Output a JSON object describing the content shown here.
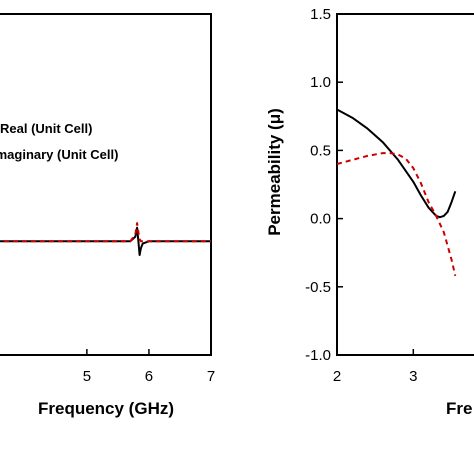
{
  "chart_data": [
    {
      "type": "line",
      "panel": "left",
      "xlabel": "Frequency (GHz)",
      "ylabel": "",
      "xlim": [
        3.52,
        7
      ],
      "ylim": [
        -0.5,
        1.0
      ],
      "x_ticks": [
        5,
        6,
        7
      ],
      "x_tick_labels": [
        "5",
        "6",
        "7"
      ],
      "y_ticks": [],
      "grid": false,
      "legend_position": "middle-left",
      "series": [
        {
          "name": "Real (Unit Cell)",
          "color": "#000000",
          "dash": "solid",
          "x": [
            3.52,
            5.7,
            5.78,
            5.81,
            5.83,
            5.85,
            5.87,
            5.9,
            6.0,
            7.0
          ],
          "y": [
            0.0,
            0.0,
            0.02,
            0.06,
            0.0,
            -0.06,
            -0.03,
            -0.01,
            0.0,
            0.0
          ]
        },
        {
          "name": "Imaginary (Unit Cell)",
          "color": "#cc0000",
          "dash": "dashed",
          "x": [
            3.52,
            5.7,
            5.78,
            5.81,
            5.83,
            5.85,
            5.87,
            5.9,
            6.0,
            7.0
          ],
          "y": [
            0.0,
            0.0,
            0.03,
            0.08,
            0.04,
            0.01,
            0.0,
            0.0,
            0.0,
            0.0
          ]
        }
      ]
    },
    {
      "type": "line",
      "panel": "right",
      "xlabel": "Fre",
      "ylabel": "Permeability (μ)",
      "xlim": [
        2,
        3.9
      ],
      "ylim": [
        -1.0,
        1.5
      ],
      "x_ticks": [
        2,
        3
      ],
      "x_tick_labels": [
        "2",
        "3"
      ],
      "y_ticks": [
        -1.0,
        -0.5,
        0.0,
        0.5,
        1.0,
        1.5
      ],
      "y_tick_labels": [
        "-1.0",
        "-0.5",
        "0.0",
        "0.5",
        "1.0",
        "1.5"
      ],
      "grid": false,
      "series": [
        {
          "color": "#000000",
          "dash": "solid",
          "x": [
            2.0,
            2.2,
            2.4,
            2.6,
            2.8,
            3.0,
            3.1,
            3.2,
            3.3,
            3.35,
            3.4,
            3.45,
            3.5,
            3.55
          ],
          "y": [
            0.8,
            0.74,
            0.66,
            0.56,
            0.43,
            0.27,
            0.17,
            0.08,
            0.02,
            0.01,
            0.02,
            0.05,
            0.12,
            0.2
          ]
        },
        {
          "color": "#cc0000",
          "dash": "dashed",
          "x": [
            2.0,
            2.2,
            2.4,
            2.6,
            2.7,
            2.8,
            2.9,
            3.0,
            3.1,
            3.2,
            3.3,
            3.4,
            3.5,
            3.55
          ],
          "y": [
            0.4,
            0.43,
            0.46,
            0.48,
            0.48,
            0.47,
            0.44,
            0.37,
            0.26,
            0.12,
            0.02,
            -0.1,
            -0.3,
            -0.42
          ]
        }
      ]
    }
  ]
}
